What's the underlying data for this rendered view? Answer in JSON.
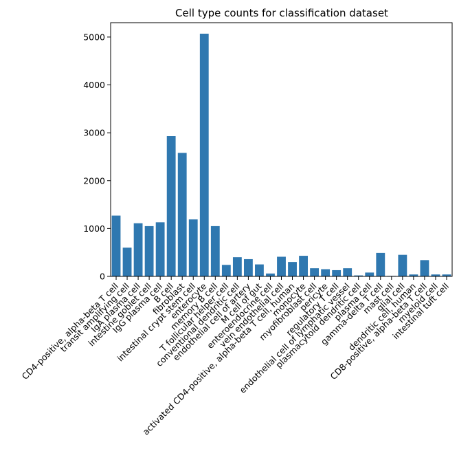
{
  "chart_data": {
    "type": "bar",
    "title": "Cell type counts for classification dataset",
    "xlabel": "",
    "ylabel": "",
    "ylim": [
      0,
      5300
    ],
    "yticks": [
      0,
      1000,
      2000,
      3000,
      4000,
      5000
    ],
    "bar_color": "#2f78b0",
    "grid": false,
    "categories": [
      "CD4-positive, alpha-beta T cell",
      "transit amplifying cell",
      "IgA plasma cell",
      "intestine goblet cell",
      "IgG plasma cell",
      "B cell",
      "fibroblast",
      "intestinal crypt stem cell",
      "enterocyte",
      "memory B cell",
      "T follicular helper cell",
      "conventional dendritic cell",
      "endothelial cell of artery",
      "M cell of gut",
      "enteroendocrine cell",
      "vein endothelial cell",
      "activated CD4-positive, alpha-beta T cell, human",
      "monocyte",
      "myofibroblast cell",
      "pericyte",
      "regulatory T cell",
      "endothelial cell of lymphatic vessel",
      "plasmacytoid dendritic cell",
      "plasma cell",
      "gamma-delta T cell",
      "mast cell",
      "glial cell",
      "dendritic cell, human",
      "CD8-positive, alpha-beta T cell",
      "myeloid cell",
      "intestinal tuft cell"
    ],
    "values": [
      1270,
      600,
      1110,
      1050,
      1130,
      2930,
      2580,
      1190,
      5070,
      1050,
      240,
      400,
      360,
      250,
      60,
      410,
      300,
      430,
      170,
      150,
      130,
      170,
      20,
      80,
      490,
      10,
      450,
      40,
      340,
      40,
      40
    ]
  }
}
